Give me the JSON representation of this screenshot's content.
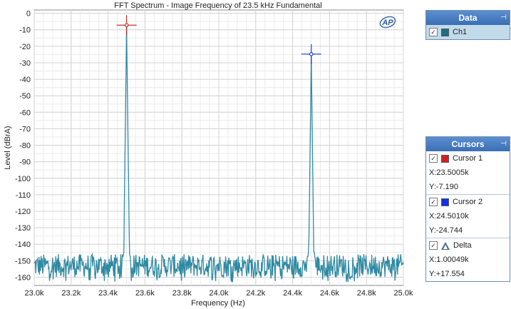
{
  "chart_data": {
    "type": "line",
    "title": "FFT Spectrum - Image Frequency of 23.5 kHz Fundamental",
    "xlabel": "Frequency (Hz)",
    "ylabel": "Level (dBrA)",
    "xlim": [
      23000,
      25000
    ],
    "ylim": [
      -165,
      2
    ],
    "x_ticks": [
      23000,
      23200,
      23400,
      23600,
      23800,
      24000,
      24200,
      24400,
      24600,
      24800,
      25000
    ],
    "x_tick_labels": [
      "23.0k",
      "23.2k",
      "23.4k",
      "23.6k",
      "23.8k",
      "24.0k",
      "24.2k",
      "24.4k",
      "24.6k",
      "24.8k",
      "25.0k"
    ],
    "y_ticks": [
      0,
      -10,
      -20,
      -30,
      -40,
      -50,
      -60,
      -70,
      -80,
      -90,
      -100,
      -110,
      -120,
      -130,
      -140,
      -150,
      -160
    ],
    "y_tick_labels": [
      "0",
      "-10",
      "-20",
      "-30",
      "-40",
      "-50",
      "-60",
      "-70",
      "-80",
      "-90",
      "-100",
      "-110",
      "-120",
      "-130",
      "-140",
      "-150",
      "-160"
    ],
    "grid": true,
    "series": [
      {
        "name": "Ch1",
        "color": "#2f8aa3",
        "peaks": [
          {
            "x": 23500.5,
            "y": -7.19
          },
          {
            "x": 24501.0,
            "y": -24.744
          }
        ],
        "noise_floor_range": [
          -163,
          -145
        ]
      }
    ],
    "cursors": [
      {
        "x": 23500.5,
        "y": -7.19,
        "color": "#c03030"
      },
      {
        "x": 24501.0,
        "y": -24.744,
        "color": "#1a3fd0"
      }
    ]
  },
  "data_panel": {
    "title": "Data",
    "pin_icon": "pin-icon",
    "items": [
      {
        "label": "Ch1",
        "color": "#1f6e86",
        "checked": true
      }
    ]
  },
  "cursors_panel": {
    "title": "Cursors",
    "pin_icon": "pin-icon",
    "cursor1": {
      "label": "Cursor 1",
      "color": "#d02020",
      "x": "X:23.5005k",
      "y": "Y:-7.190"
    },
    "cursor2": {
      "label": "Cursor 2",
      "color": "#1030f0",
      "x": "X:24.5010k",
      "y": "Y:-24.744"
    },
    "delta": {
      "label": "Delta",
      "x": "X:1.00049k",
      "y": "Y:+17.554"
    }
  },
  "logo": {
    "text": "AP"
  }
}
